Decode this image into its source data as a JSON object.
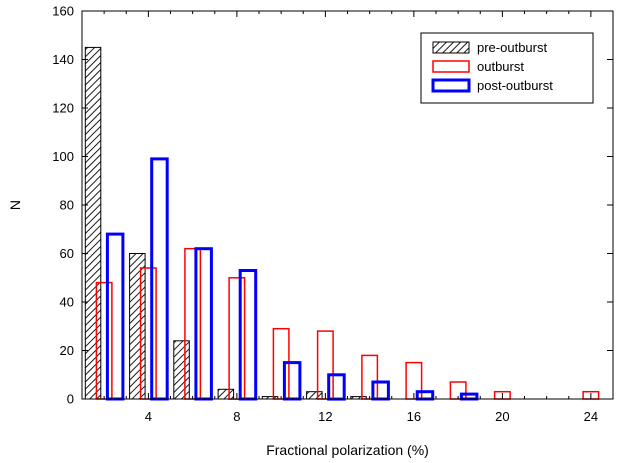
{
  "chart_data": {
    "type": "bar",
    "title": "",
    "xlabel": "Fractional polarization (%)",
    "ylabel": "N",
    "xlim": [
      1,
      25
    ],
    "ylim": [
      0,
      160
    ],
    "x_ticks": [
      4,
      8,
      12,
      16,
      20,
      24
    ],
    "y_ticks": [
      0,
      20,
      40,
      60,
      80,
      100,
      120,
      140,
      160
    ],
    "grid": false,
    "legend_position": "top-right",
    "bin_centers": [
      2,
      4,
      6,
      8,
      10,
      12,
      14,
      16,
      18,
      20,
      22,
      24
    ],
    "series": [
      {
        "name": "pre-outburst",
        "style": "hatched",
        "color": "#000000",
        "values": [
          145,
          60,
          24,
          4,
          1,
          3,
          1,
          0,
          0,
          0,
          0,
          0
        ]
      },
      {
        "name": "outburst",
        "style": "outline",
        "color": "#ff0000",
        "values": [
          48,
          54,
          62,
          50,
          29,
          28,
          18,
          15,
          7,
          3,
          0,
          3
        ]
      },
      {
        "name": "post-outburst",
        "style": "outline-thick",
        "color": "#0000ff",
        "values": [
          68,
          99,
          62,
          53,
          15,
          10,
          7,
          3,
          2,
          0,
          0,
          0
        ]
      }
    ]
  }
}
